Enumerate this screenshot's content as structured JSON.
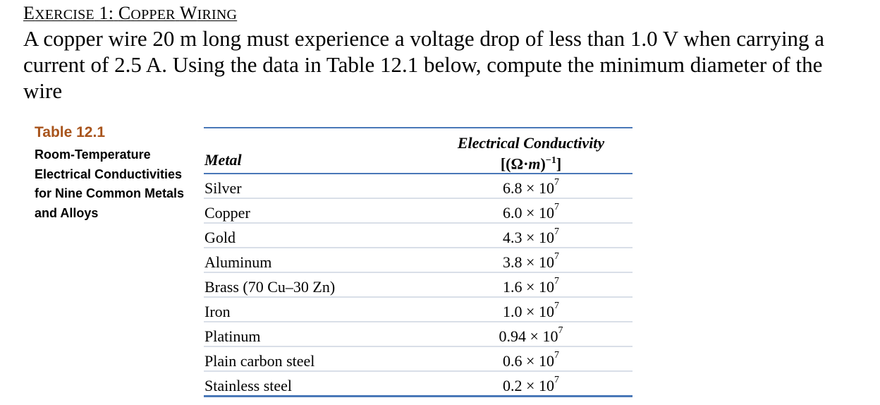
{
  "exercise": {
    "label_first": "E",
    "label_rest": "XERCISE",
    "number": "1:",
    "name_first": "C",
    "name_rest": "OPPER",
    "name_second_first": "W",
    "name_second_rest": "IRING"
  },
  "problem_text": "A copper wire 20 m long must experience a voltage drop of less than 1.0 V when carrying a current of 2.5 A. Using the data in Table 12.1 below, compute the minimum diameter of the wire",
  "caption": {
    "table_number": "Table 12.1",
    "description": "Room-Temperature Electrical Conductivities for Nine Common Metals and Alloys"
  },
  "table": {
    "header_metal": "Metal",
    "header_conductivity": "Electrical Conductivity",
    "header_unit_open": "[(Ω·",
    "header_unit_m": "m",
    "header_unit_close": ")",
    "header_unit_exp": "−1",
    "header_unit_end": "]",
    "rows": [
      {
        "metal": "Silver",
        "mantissa": "6.8 × 10",
        "exp": "7"
      },
      {
        "metal": "Copper",
        "mantissa": "6.0 × 10",
        "exp": "7"
      },
      {
        "metal": "Gold",
        "mantissa": "4.3 × 10",
        "exp": "7"
      },
      {
        "metal": "Aluminum",
        "mantissa": "3.8 × 10",
        "exp": "7"
      },
      {
        "metal": "Brass (70 Cu–30 Zn)",
        "mantissa": "1.6 × 10",
        "exp": "7"
      },
      {
        "metal": "Iron",
        "mantissa": "1.0 × 10",
        "exp": "7"
      },
      {
        "metal": "Platinum",
        "mantissa": "0.94 × 10",
        "exp": "7"
      },
      {
        "metal": "Plain carbon steel",
        "mantissa": "0.6 × 10",
        "exp": "7"
      },
      {
        "metal": "Stainless steel",
        "mantissa": "0.2 × 10",
        "exp": "7"
      }
    ]
  }
}
